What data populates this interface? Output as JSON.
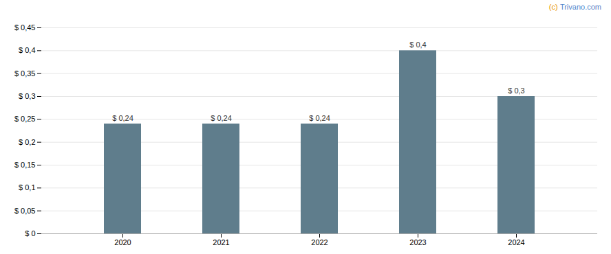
{
  "chart_data": {
    "type": "bar",
    "categories": [
      "2020",
      "2021",
      "2022",
      "2023",
      "2024"
    ],
    "values": [
      0.24,
      0.24,
      0.24,
      0.4,
      0.3
    ],
    "value_labels": [
      "$ 0,24",
      "$ 0,24",
      "$ 0,24",
      "$ 0,4",
      "$ 0,3"
    ],
    "data_labels": true,
    "color": "#5f7d8c",
    "ylim": [
      0,
      0.45
    ],
    "yticks": [
      {
        "value": 0,
        "label": "$ 0"
      },
      {
        "value": 0.05,
        "label": "$ 0,05"
      },
      {
        "value": 0.1,
        "label": "$ 0,1"
      },
      {
        "value": 0.15,
        "label": "$ 0,15"
      },
      {
        "value": 0.2,
        "label": "$ 0,2"
      },
      {
        "value": 0.25,
        "label": "$ 0,25"
      },
      {
        "value": 0.3,
        "label": "$ 0,3"
      },
      {
        "value": 0.35,
        "label": "$ 0,35"
      },
      {
        "value": 0.4,
        "label": "$ 0,4"
      },
      {
        "value": 0.45,
        "label": "$ 0,45"
      }
    ],
    "grid": true,
    "annotations": [
      {
        "text": "(c)",
        "color": "#e8940a"
      },
      {
        "text": "Trivano.com",
        "color": "#5588cc"
      }
    ]
  }
}
